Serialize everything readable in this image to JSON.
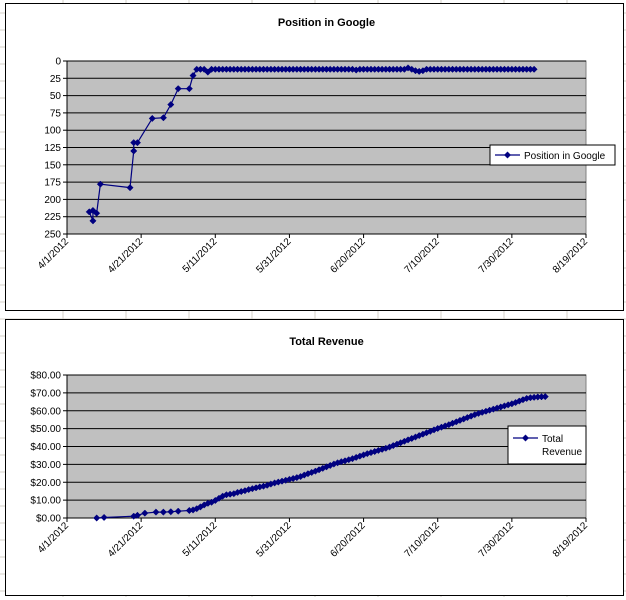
{
  "chart_data": [
    {
      "type": "line",
      "title": "Position in Google",
      "xlabel": "",
      "ylabel": "",
      "y_reversed": true,
      "ylim": [
        0,
        250
      ],
      "yticks": [
        "0",
        "25",
        "50",
        "75",
        "100",
        "125",
        "150",
        "175",
        "200",
        "225",
        "250"
      ],
      "xlim": [
        "2012-04-01",
        "2012-08-19"
      ],
      "xticks": [
        "4/1/2012",
        "4/21/2012",
        "5/11/2012",
        "5/31/2012",
        "6/20/2012",
        "7/10/2012",
        "7/30/2012",
        "8/19/2012"
      ],
      "grid": true,
      "legend": "right",
      "plot_background": "#c0c0c0",
      "series_color": "#000080",
      "series": [
        {
          "name": "Position in Google",
          "points": [
            [
              "2012-04-07",
              218
            ],
            [
              "2012-04-08",
              231
            ],
            [
              "2012-04-08",
              216
            ],
            [
              "2012-04-09",
              220
            ],
            [
              "2012-04-10",
              178
            ],
            [
              "2012-04-18",
              183
            ],
            [
              "2012-04-19",
              130
            ],
            [
              "2012-04-19",
              118
            ],
            [
              "2012-04-20",
              118
            ],
            [
              "2012-04-24",
              83
            ],
            [
              "2012-04-27",
              82
            ],
            [
              "2012-04-29",
              63
            ],
            [
              "2012-05-01",
              40
            ],
            [
              "2012-05-04",
              40
            ],
            [
              "2012-05-05",
              21
            ],
            [
              "2012-05-06",
              12
            ],
            [
              "2012-05-07",
              12
            ],
            [
              "2012-05-08",
              12
            ],
            [
              "2012-05-09",
              16
            ],
            [
              "2012-05-10",
              12
            ],
            [
              "2012-05-11",
              12
            ],
            [
              "2012-05-12",
              12
            ],
            [
              "2012-05-13",
              12
            ],
            [
              "2012-05-14",
              12
            ],
            [
              "2012-05-15",
              12
            ],
            [
              "2012-05-16",
              12
            ],
            [
              "2012-05-17",
              12
            ],
            [
              "2012-05-18",
              12
            ],
            [
              "2012-05-19",
              12
            ],
            [
              "2012-05-20",
              12
            ],
            [
              "2012-05-21",
              12
            ],
            [
              "2012-05-22",
              12
            ],
            [
              "2012-05-23",
              12
            ],
            [
              "2012-05-24",
              12
            ],
            [
              "2012-05-25",
              12
            ],
            [
              "2012-05-26",
              12
            ],
            [
              "2012-05-27",
              12
            ],
            [
              "2012-05-28",
              12
            ],
            [
              "2012-05-29",
              12
            ],
            [
              "2012-05-30",
              12
            ],
            [
              "2012-05-31",
              12
            ],
            [
              "2012-06-01",
              12
            ],
            [
              "2012-06-02",
              12
            ],
            [
              "2012-06-03",
              12
            ],
            [
              "2012-06-04",
              12
            ],
            [
              "2012-06-05",
              12
            ],
            [
              "2012-06-06",
              12
            ],
            [
              "2012-06-07",
              12
            ],
            [
              "2012-06-08",
              12
            ],
            [
              "2012-06-09",
              12
            ],
            [
              "2012-06-10",
              12
            ],
            [
              "2012-06-11",
              12
            ],
            [
              "2012-06-12",
              12
            ],
            [
              "2012-06-13",
              12
            ],
            [
              "2012-06-14",
              12
            ],
            [
              "2012-06-15",
              12
            ],
            [
              "2012-06-16",
              12
            ],
            [
              "2012-06-17",
              12
            ],
            [
              "2012-06-18",
              13
            ],
            [
              "2012-06-19",
              12
            ],
            [
              "2012-06-20",
              12
            ],
            [
              "2012-06-21",
              12
            ],
            [
              "2012-06-22",
              12
            ],
            [
              "2012-06-23",
              12
            ],
            [
              "2012-06-24",
              12
            ],
            [
              "2012-06-25",
              12
            ],
            [
              "2012-06-26",
              12
            ],
            [
              "2012-06-27",
              12
            ],
            [
              "2012-06-28",
              12
            ],
            [
              "2012-06-29",
              12
            ],
            [
              "2012-06-30",
              12
            ],
            [
              "2012-07-01",
              12
            ],
            [
              "2012-07-02",
              10
            ],
            [
              "2012-07-03",
              12
            ],
            [
              "2012-07-04",
              14
            ],
            [
              "2012-07-05",
              15
            ],
            [
              "2012-07-06",
              14
            ],
            [
              "2012-07-07",
              12
            ],
            [
              "2012-07-08",
              12
            ],
            [
              "2012-07-09",
              12
            ],
            [
              "2012-07-10",
              12
            ],
            [
              "2012-07-11",
              12
            ],
            [
              "2012-07-12",
              12
            ],
            [
              "2012-07-13",
              12
            ],
            [
              "2012-07-14",
              12
            ],
            [
              "2012-07-15",
              12
            ],
            [
              "2012-07-16",
              12
            ],
            [
              "2012-07-17",
              12
            ],
            [
              "2012-07-18",
              12
            ],
            [
              "2012-07-19",
              12
            ],
            [
              "2012-07-20",
              12
            ],
            [
              "2012-07-21",
              12
            ],
            [
              "2012-07-22",
              12
            ],
            [
              "2012-07-23",
              12
            ],
            [
              "2012-07-24",
              12
            ],
            [
              "2012-07-25",
              12
            ],
            [
              "2012-07-26",
              12
            ],
            [
              "2012-07-27",
              12
            ],
            [
              "2012-07-28",
              12
            ],
            [
              "2012-07-29",
              12
            ],
            [
              "2012-07-30",
              12
            ],
            [
              "2012-07-31",
              12
            ],
            [
              "2012-08-01",
              12
            ],
            [
              "2012-08-02",
              12
            ],
            [
              "2012-08-03",
              12
            ],
            [
              "2012-08-04",
              12
            ],
            [
              "2012-08-05",
              12
            ]
          ]
        }
      ]
    },
    {
      "type": "line",
      "title": "Total Revenue",
      "xlabel": "",
      "ylabel": "",
      "ylim": [
        0,
        80
      ],
      "yticks": [
        "$0.00",
        "$10.00",
        "$20.00",
        "$30.00",
        "$40.00",
        "$50.00",
        "$60.00",
        "$70.00",
        "$80.00"
      ],
      "xlim": [
        "2012-04-01",
        "2012-08-19"
      ],
      "xticks": [
        "4/1/2012",
        "4/21/2012",
        "5/11/2012",
        "5/31/2012",
        "6/20/2012",
        "7/10/2012",
        "7/30/2012",
        "8/19/2012"
      ],
      "grid": true,
      "legend": "right",
      "plot_background": "#c0c0c0",
      "series_color": "#000080",
      "series": [
        {
          "name": "Total Revenue",
          "points": [
            [
              "2012-04-09",
              0.0
            ],
            [
              "2012-04-11",
              0.3
            ],
            [
              "2012-04-19",
              1.0
            ],
            [
              "2012-04-20",
              1.5
            ],
            [
              "2012-04-22",
              2.7
            ],
            [
              "2012-04-25",
              3.3
            ],
            [
              "2012-04-27",
              3.3
            ],
            [
              "2012-04-29",
              3.5
            ],
            [
              "2012-05-01",
              3.8
            ],
            [
              "2012-05-04",
              4.2
            ],
            [
              "2012-05-05",
              4.5
            ],
            [
              "2012-05-06",
              5.2
            ],
            [
              "2012-05-07",
              6.2
            ],
            [
              "2012-05-08",
              7.3
            ],
            [
              "2012-05-09",
              8.2
            ],
            [
              "2012-05-10",
              8.8
            ],
            [
              "2012-05-11",
              9.8
            ],
            [
              "2012-05-12",
              11.0
            ],
            [
              "2012-05-13",
              12.2
            ],
            [
              "2012-05-14",
              13.0
            ],
            [
              "2012-05-15",
              13.3
            ],
            [
              "2012-05-16",
              13.6
            ],
            [
              "2012-05-17",
              14.3
            ],
            [
              "2012-05-18",
              14.8
            ],
            [
              "2012-05-19",
              15.3
            ],
            [
              "2012-05-20",
              15.9
            ],
            [
              "2012-05-21",
              16.4
            ],
            [
              "2012-05-22",
              16.9
            ],
            [
              "2012-05-23",
              17.4
            ],
            [
              "2012-05-24",
              17.8
            ],
            [
              "2012-05-25",
              18.3
            ],
            [
              "2012-05-26",
              19.0
            ],
            [
              "2012-05-27",
              19.6
            ],
            [
              "2012-05-28",
              20.1
            ],
            [
              "2012-05-29",
              20.6
            ],
            [
              "2012-05-30",
              21.1
            ],
            [
              "2012-05-31",
              21.6
            ],
            [
              "2012-06-01",
              22.1
            ],
            [
              "2012-06-02",
              22.6
            ],
            [
              "2012-06-03",
              23.2
            ],
            [
              "2012-06-04",
              24.0
            ],
            [
              "2012-06-05",
              24.8
            ],
            [
              "2012-06-06",
              25.5
            ],
            [
              "2012-06-07",
              26.2
            ],
            [
              "2012-06-08",
              27.0
            ],
            [
              "2012-06-09",
              27.8
            ],
            [
              "2012-06-10",
              28.6
            ],
            [
              "2012-06-11",
              29.4
            ],
            [
              "2012-06-12",
              30.2
            ],
            [
              "2012-06-13",
              30.9
            ],
            [
              "2012-06-14",
              31.5
            ],
            [
              "2012-06-15",
              32.0
            ],
            [
              "2012-06-16",
              32.6
            ],
            [
              "2012-06-17",
              33.2
            ],
            [
              "2012-06-18",
              33.9
            ],
            [
              "2012-06-19",
              34.6
            ],
            [
              "2012-06-20",
              35.3
            ],
            [
              "2012-06-21",
              36.0
            ],
            [
              "2012-06-22",
              36.6
            ],
            [
              "2012-06-23",
              37.2
            ],
            [
              "2012-06-24",
              37.8
            ],
            [
              "2012-06-25",
              38.4
            ],
            [
              "2012-06-26",
              39.0
            ],
            [
              "2012-06-27",
              39.7
            ],
            [
              "2012-06-28",
              40.5
            ],
            [
              "2012-06-29",
              41.3
            ],
            [
              "2012-06-30",
              42.1
            ],
            [
              "2012-07-01",
              42.9
            ],
            [
              "2012-07-02",
              43.7
            ],
            [
              "2012-07-03",
              44.5
            ],
            [
              "2012-07-04",
              45.3
            ],
            [
              "2012-07-05",
              46.1
            ],
            [
              "2012-07-06",
              46.9
            ],
            [
              "2012-07-07",
              47.7
            ],
            [
              "2012-07-08",
              48.5
            ],
            [
              "2012-07-09",
              49.3
            ],
            [
              "2012-07-10",
              50.1
            ],
            [
              "2012-07-11",
              50.8
            ],
            [
              "2012-07-12",
              51.5
            ],
            [
              "2012-07-13",
              52.2
            ],
            [
              "2012-07-14",
              53.0
            ],
            [
              "2012-07-15",
              53.8
            ],
            [
              "2012-07-16",
              54.6
            ],
            [
              "2012-07-17",
              55.4
            ],
            [
              "2012-07-18",
              56.2
            ],
            [
              "2012-07-19",
              57.0
            ],
            [
              "2012-07-20",
              57.8
            ],
            [
              "2012-07-21",
              58.5
            ],
            [
              "2012-07-22",
              59.1
            ],
            [
              "2012-07-23",
              59.7
            ],
            [
              "2012-07-24",
              60.3
            ],
            [
              "2012-07-25",
              60.9
            ],
            [
              "2012-07-26",
              61.5
            ],
            [
              "2012-07-27",
              62.1
            ],
            [
              "2012-07-28",
              62.7
            ],
            [
              "2012-07-29",
              63.3
            ],
            [
              "2012-07-30",
              63.9
            ],
            [
              "2012-07-31",
              64.6
            ],
            [
              "2012-08-01",
              65.4
            ],
            [
              "2012-08-02",
              66.2
            ],
            [
              "2012-08-03",
              66.9
            ],
            [
              "2012-08-04",
              67.3
            ],
            [
              "2012-08-05",
              67.5
            ],
            [
              "2012-08-06",
              67.7
            ],
            [
              "2012-08-07",
              67.8
            ],
            [
              "2012-08-08",
              67.9
            ]
          ]
        }
      ]
    }
  ]
}
